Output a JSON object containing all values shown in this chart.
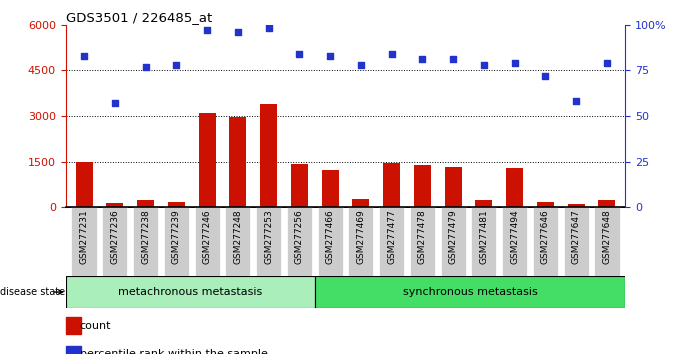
{
  "title": "GDS3501 / 226485_at",
  "categories": [
    "GSM277231",
    "GSM277236",
    "GSM277238",
    "GSM277239",
    "GSM277246",
    "GSM277248",
    "GSM277253",
    "GSM277256",
    "GSM277466",
    "GSM277469",
    "GSM277477",
    "GSM277478",
    "GSM277479",
    "GSM277481",
    "GSM277494",
    "GSM277646",
    "GSM277647",
    "GSM277648"
  ],
  "bar_values": [
    1480,
    120,
    230,
    180,
    3100,
    2970,
    3380,
    1430,
    1230,
    260,
    1440,
    1370,
    1330,
    220,
    1280,
    180,
    100,
    230
  ],
  "dot_values_pct": [
    83,
    57,
    77,
    78,
    97,
    96,
    98,
    84,
    83,
    78,
    84,
    81,
    81,
    78,
    79,
    72,
    58,
    79
  ],
  "bar_color": "#cc1100",
  "dot_color": "#2233cc",
  "ylim_left": [
    0,
    6000
  ],
  "ylim_right": [
    0,
    100
  ],
  "yticks_left": [
    0,
    1500,
    3000,
    4500,
    6000
  ],
  "ytick_labels_left": [
    "0",
    "1500",
    "3000",
    "4500",
    "6000"
  ],
  "yticks_right": [
    0,
    25,
    50,
    75,
    100
  ],
  "ytick_labels_right": [
    "0",
    "25",
    "50",
    "75",
    "100%"
  ],
  "group1_label": "metachronous metastasis",
  "group2_label": "synchronous metastasis",
  "group1_count": 8,
  "disease_state_label": "disease state",
  "legend_bar": "count",
  "legend_dot": "percentile rank within the sample",
  "tick_area_color": "#cccccc",
  "group1_color": "#aaeebb",
  "group2_color": "#44dd66"
}
